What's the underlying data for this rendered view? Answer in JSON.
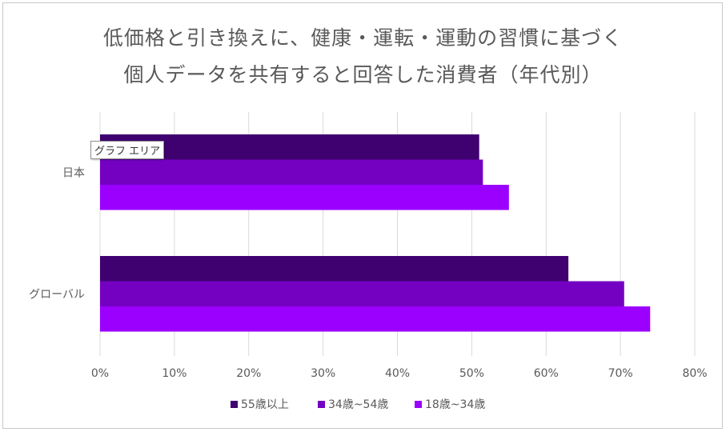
{
  "chart_data": {
    "type": "bar",
    "orientation": "horizontal",
    "title_line1": "低価格と引き換えに、健康・運転・運動の習慣に基づく",
    "title_line2": "個人データを共有すると回答した消費者（年代別）",
    "categories": [
      "日本",
      "グローバル"
    ],
    "series": [
      {
        "name": "55歳以上",
        "color": "#3f0070",
        "values": [
          51,
          63
        ]
      },
      {
        "name": "34歳~54歳",
        "color": "#7400c2",
        "values": [
          51.5,
          70.5
        ]
      },
      {
        "name": "18歳~34歳",
        "color": "#9b00ff",
        "values": [
          55,
          74
        ]
      }
    ],
    "xlim": [
      0,
      80
    ],
    "x_ticks": [
      "0%",
      "10%",
      "20%",
      "30%",
      "40%",
      "50%",
      "60%",
      "70%",
      "80%"
    ],
    "grid": true,
    "legend_position": "bottom"
  },
  "tooltip": "グラフ エリア"
}
